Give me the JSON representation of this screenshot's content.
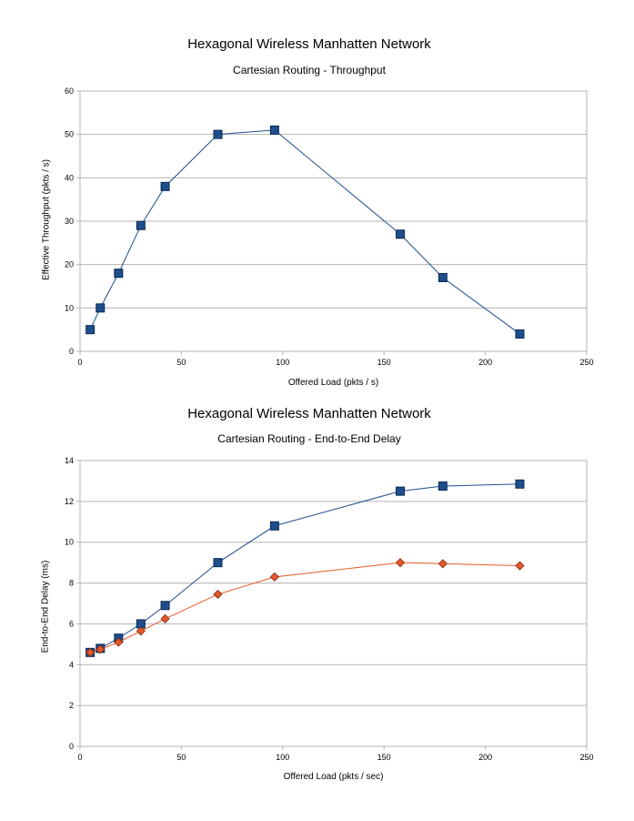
{
  "chart_data": [
    {
      "type": "line",
      "title": "Hexagonal Wireless Manhatten Network",
      "subtitle": "Cartesian Routing - Throughput",
      "xlabel": "Offered Load (pkts / s)",
      "ylabel": "Effective Throughput (pkts / s)",
      "xlim": [
        0,
        250
      ],
      "ylim": [
        0,
        60
      ],
      "xticks": [
        0,
        50,
        100,
        150,
        200,
        250
      ],
      "yticks": [
        0,
        10,
        20,
        30,
        40,
        50,
        60
      ],
      "grid": true,
      "series": [
        {
          "marker": "square",
          "color": "#1f4e8c",
          "x": [
            5,
            10,
            19,
            30,
            42,
            68,
            96,
            158,
            179,
            217
          ],
          "y": [
            5,
            10,
            18,
            29,
            38,
            50,
            51,
            27,
            17,
            4
          ]
        }
      ]
    },
    {
      "type": "line",
      "title": "Hexagonal Wireless Manhatten Network",
      "subtitle": "Cartesian Routing - End-to-End Delay",
      "xlabel": "Offered Load (pkts / sec)",
      "ylabel": "End-to-End Delay (ms)",
      "xlim": [
        0,
        250
      ],
      "ylim": [
        0,
        14
      ],
      "xticks": [
        0,
        50,
        100,
        150,
        200,
        250
      ],
      "yticks": [
        0,
        2,
        4,
        6,
        8,
        10,
        12,
        14
      ],
      "grid": true,
      "series": [
        {
          "marker": "square",
          "color": "#1f4e8c",
          "x": [
            5,
            10,
            19,
            30,
            42,
            68,
            96,
            158,
            179,
            217
          ],
          "y": [
            4.6,
            4.8,
            5.3,
            6.0,
            6.9,
            9.0,
            10.8,
            12.5,
            12.75,
            12.85
          ]
        },
        {
          "marker": "diamond",
          "color": "#e8572a",
          "x": [
            5,
            10,
            19,
            30,
            42,
            68,
            96,
            158,
            179,
            217
          ],
          "y": [
            4.6,
            4.75,
            5.1,
            5.65,
            6.25,
            7.45,
            8.3,
            9.0,
            8.95,
            8.85
          ]
        }
      ]
    }
  ]
}
